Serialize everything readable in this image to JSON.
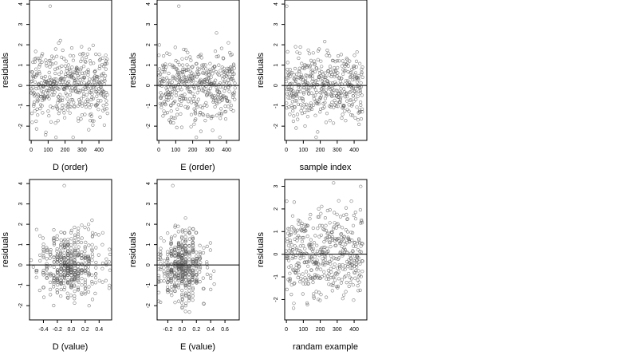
{
  "chart_data": [
    {
      "type": "scatter",
      "xlabel": "D (order)",
      "ylabel": "residuals",
      "xlim": [
        -10,
        475
      ],
      "ylim": [
        -2.7,
        4.2
      ],
      "xticks": [
        0,
        100,
        200,
        300,
        400
      ],
      "yticks": [
        -2,
        -1,
        0,
        1,
        2,
        3,
        4
      ],
      "hline": 0,
      "series": [
        {
          "n": 450,
          "x_range": [
            0,
            450
          ],
          "mean": 0,
          "sd": 0.85,
          "x": [
            112
          ],
          "y": [
            3.9
          ]
        }
      ]
    },
    {
      "type": "scatter",
      "xlabel": "E (order)",
      "ylabel": "residuals",
      "xlim": [
        -10,
        475
      ],
      "ylim": [
        -2.7,
        4.2
      ],
      "xticks": [
        0,
        100,
        200,
        300,
        400
      ],
      "yticks": [
        -2,
        -1,
        0,
        1,
        2,
        3,
        4
      ],
      "hline": 0,
      "series": [
        {
          "n": 450,
          "x_range": [
            0,
            450
          ],
          "mean": 0,
          "sd": 0.85,
          "x": [
            118
          ],
          "y": [
            3.9
          ]
        }
      ]
    },
    {
      "type": "scatter",
      "xlabel": "sample index",
      "ylabel": "residuals",
      "xlim": [
        -10,
        475
      ],
      "ylim": [
        -2.7,
        4.2
      ],
      "xticks": [
        0,
        100,
        200,
        300,
        400
      ],
      "yticks": [
        -2,
        -1,
        0,
        1,
        2,
        3,
        4
      ],
      "hline": 0,
      "series": [
        {
          "n": 450,
          "x_range": [
            0,
            450
          ],
          "mean": 0,
          "sd": 0.85,
          "x": [
            2
          ],
          "y": [
            3.9
          ]
        }
      ]
    },
    {
      "type": "scatter",
      "xlabel": "D (value)",
      "ylabel": "residuals",
      "xlim": [
        -0.6,
        0.58
      ],
      "ylim": [
        -2.7,
        4.2
      ],
      "xticks": [
        -0.4,
        -0.2,
        0.0,
        0.2,
        0.4
      ],
      "yticks": [
        -2,
        -1,
        0,
        1,
        2,
        3,
        4
      ],
      "hline": 0,
      "series": [
        {
          "n": 450,
          "x_center": 0,
          "x_sd": 0.22,
          "mean": 0,
          "sd": 0.85,
          "x": [
            -0.1
          ],
          "y": [
            3.9
          ]
        }
      ]
    },
    {
      "type": "scatter",
      "xlabel": "E (value)",
      "ylabel": "residuals",
      "xlim": [
        -0.35,
        0.8
      ],
      "ylim": [
        -2.7,
        4.2
      ],
      "xticks": [
        -0.2,
        0.0,
        0.2,
        0.4,
        0.6
      ],
      "yticks": [
        -2,
        -1,
        0,
        1,
        2,
        3,
        4
      ],
      "hline": 0,
      "series": [
        {
          "n": 450,
          "x_center": 0,
          "x_sd": 0.16,
          "mean": 0,
          "sd": 0.85,
          "x": [
            -0.13
          ],
          "y": [
            3.9
          ]
        }
      ]
    },
    {
      "type": "scatter",
      "xlabel": "randam example",
      "ylabel": "residuals",
      "xlim": [
        -10,
        475
      ],
      "ylim": [
        -2.9,
        3.3
      ],
      "xticks": [
        0,
        100,
        200,
        300,
        400
      ],
      "yticks": [
        -2,
        -1,
        0,
        1,
        2,
        3
      ],
      "hline": 0,
      "series": [
        {
          "n": 450,
          "x_range": [
            0,
            450
          ],
          "mean": 0,
          "sd": 1.0,
          "x": [],
          "y": []
        }
      ]
    }
  ]
}
